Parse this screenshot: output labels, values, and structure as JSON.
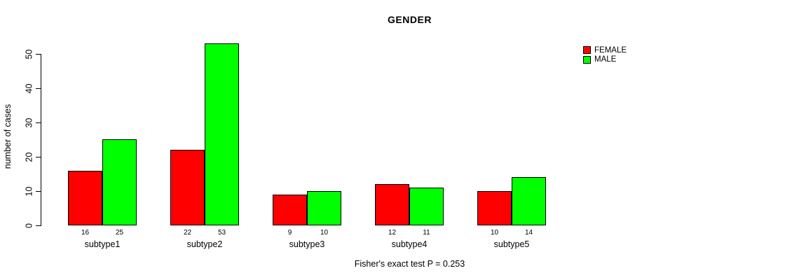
{
  "chart_data": {
    "type": "bar",
    "title": "GENDER",
    "ylabel": "number of cases",
    "caption": "Fisher's exact test P = 0.253",
    "categories": [
      "subtype1",
      "subtype2",
      "subtype3",
      "subtype4",
      "subtype5"
    ],
    "series": [
      {
        "name": "FEMALE",
        "color": "#FF0000",
        "values": [
          16,
          22,
          9,
          12,
          10
        ]
      },
      {
        "name": "MALE",
        "color": "#00FF00",
        "values": [
          25,
          53,
          10,
          11,
          14
        ]
      }
    ],
    "yticks": [
      0,
      10,
      20,
      30,
      40,
      50
    ],
    "ylim": [
      0,
      50
    ],
    "grid": false,
    "legend_position": "top-right",
    "bar_value_labels_shown": true,
    "axis_color": "#000000",
    "bar_border_color": "#000000"
  }
}
